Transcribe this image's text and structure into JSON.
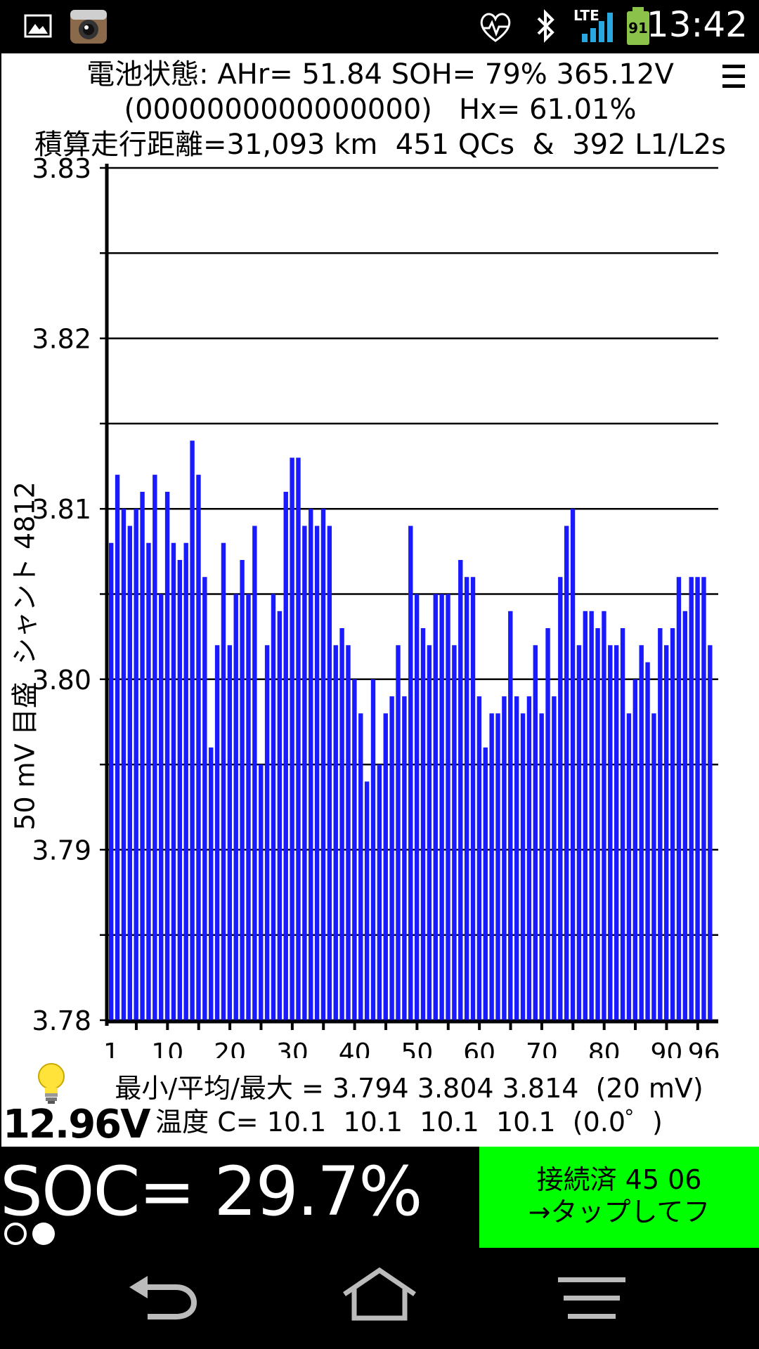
{
  "status_bar": {
    "time": "13:42",
    "battery_level": "91",
    "network": "LTE",
    "icons": [
      "image-icon",
      "camera-app-icon",
      "heart-rate-icon",
      "bluetooth-icon",
      "lte-signal-icon",
      "battery-icon"
    ]
  },
  "header": {
    "line1": "電池状態: AHr= 51.84 SOH= 79% 365.12V",
    "line2": "(0000000000000000)   Hx= 61.01%",
    "line3": "積算走行距離=31,093 km  451 QCs  &  392 L1/L2s"
  },
  "chart_data": {
    "type": "bar",
    "ylabel": "50 mV 目盛  シャント 4812",
    "ylim": [
      3.78,
      3.83
    ],
    "y_tick_labels": [
      "3.83",
      "3.82",
      "3.81",
      "3.80",
      "3.79",
      "3.78"
    ],
    "x_tick_labels": [
      "1",
      "10",
      "20",
      "30",
      "40",
      "50",
      "60",
      "70",
      "80",
      "90",
      "96"
    ],
    "grid": true,
    "color": "#1a1aff",
    "values": [
      3.808,
      3.812,
      3.81,
      3.809,
      3.81,
      3.811,
      3.808,
      3.812,
      3.805,
      3.811,
      3.808,
      3.807,
      3.808,
      3.814,
      3.812,
      3.806,
      3.796,
      3.802,
      3.808,
      3.802,
      3.805,
      3.807,
      3.805,
      3.809,
      3.795,
      3.802,
      3.805,
      3.804,
      3.811,
      3.813,
      3.813,
      3.809,
      3.81,
      3.809,
      3.81,
      3.809,
      3.802,
      3.803,
      3.802,
      3.8,
      3.798,
      3.794,
      3.8,
      3.795,
      3.798,
      3.799,
      3.802,
      3.799,
      3.809,
      3.805,
      3.803,
      3.802,
      3.805,
      3.805,
      3.805,
      3.802,
      3.807,
      3.806,
      3.806,
      3.799,
      3.796,
      3.798,
      3.798,
      3.799,
      3.804,
      3.799,
      3.798,
      3.799,
      3.802,
      3.798,
      3.803,
      3.799,
      3.806,
      3.809,
      3.81,
      3.802,
      3.804,
      3.804,
      3.803,
      3.804,
      3.802,
      3.802,
      3.803,
      3.798,
      3.8,
      3.802,
      3.801,
      3.798,
      3.803,
      3.802,
      3.803,
      3.806,
      3.804,
      3.806,
      3.806,
      3.806,
      3.802
    ]
  },
  "stats": {
    "minmax": "最小/平均/最大 = 3.794 3.804 3.814  (20 mV)",
    "temps": "温度 C= 10.1  10.1  10.1  10.1  (0.0゜)"
  },
  "aux_voltage": "12.96V",
  "soc": "SOC= 29.7%",
  "connect_button": {
    "line1": "接続済 45 06",
    "line2": "→タップしてフ"
  }
}
